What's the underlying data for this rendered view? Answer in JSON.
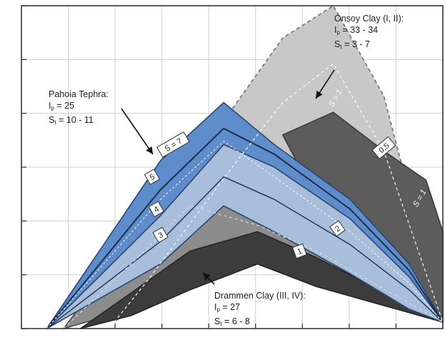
{
  "chart_data": {
    "type": "area",
    "title": "",
    "xlabel": "",
    "ylabel": "",
    "grid": true,
    "series": [
      {
        "name": "Onsoy Clay (I, II)",
        "color": "#c8c8c8",
        "edge": "#6e6e6e",
        "dashed": true,
        "upper": [
          [
            0.22,
            0.02
          ],
          [
            0.3,
            0.2
          ],
          [
            0.5,
            0.68
          ],
          [
            0.62,
            0.9
          ],
          [
            0.74,
            1.0
          ],
          [
            0.86,
            0.72
          ],
          [
            1.0,
            0.02
          ]
        ],
        "lower": [
          [
            0.22,
            0.02
          ],
          [
            0.3,
            0.1
          ],
          [
            0.5,
            0.3
          ],
          [
            0.7,
            0.4
          ],
          [
            0.85,
            0.2
          ],
          [
            1.0,
            0.02
          ]
        ]
      },
      {
        "name": "Onsoy Clay (I, II) dark",
        "color": "#5c5c5c",
        "edge": "#3a3a3a",
        "dashed": false,
        "upper": [
          [
            0.62,
            0.6
          ],
          [
            0.74,
            0.67
          ],
          [
            0.86,
            0.55
          ],
          [
            0.96,
            0.46
          ],
          [
            1.0,
            0.3
          ],
          [
            1.0,
            0.02
          ]
        ],
        "lower": [
          [
            0.62,
            0.6
          ],
          [
            0.7,
            0.4
          ],
          [
            0.85,
            0.2
          ],
          [
            1.0,
            0.02
          ]
        ]
      },
      {
        "name": "Drammen Clay (III, IV)",
        "color": "#8c8c8c",
        "edge": "#4a4a4a",
        "dashed": false,
        "upper": [
          [
            0.1,
            0.0
          ],
          [
            0.26,
            0.28
          ],
          [
            0.4,
            0.52
          ],
          [
            0.56,
            0.36
          ],
          [
            0.7,
            0.28
          ],
          [
            0.82,
            0.14
          ],
          [
            1.0,
            0.02
          ]
        ],
        "lower": [
          [
            0.1,
            0.0
          ],
          [
            0.26,
            0.06
          ],
          [
            0.4,
            0.16
          ],
          [
            0.56,
            0.26
          ],
          [
            0.7,
            0.2
          ],
          [
            1.0,
            0.02
          ]
        ]
      },
      {
        "name": "Drammen Clay (III, IV) dark",
        "color": "#3c3c3c",
        "edge": "#252525",
        "dashed": false,
        "upper": [
          [
            0.14,
            0.0
          ],
          [
            0.26,
            0.11
          ],
          [
            0.4,
            0.24
          ],
          [
            0.56,
            0.3
          ],
          [
            0.7,
            0.22
          ],
          [
            1.0,
            0.02
          ]
        ],
        "lower": [
          [
            0.14,
            0.0
          ],
          [
            0.26,
            0.04
          ],
          [
            0.4,
            0.12
          ],
          [
            0.56,
            0.2
          ],
          [
            0.7,
            0.13
          ],
          [
            1.0,
            0.02
          ]
        ]
      },
      {
        "name": "Pahoia Tephra",
        "color": "#5f8ccb",
        "edge": "#2a4670",
        "dashed": false,
        "upper": [
          [
            0.06,
            0.0
          ],
          [
            0.33,
            0.52
          ],
          [
            0.48,
            0.7
          ],
          [
            0.6,
            0.57
          ],
          [
            0.78,
            0.4
          ],
          [
            0.92,
            0.2
          ],
          [
            1.0,
            0.02
          ]
        ],
        "lower": [
          [
            0.06,
            0.0
          ],
          [
            0.33,
            0.3
          ],
          [
            0.48,
            0.5
          ],
          [
            0.6,
            0.44
          ],
          [
            0.78,
            0.23
          ],
          [
            0.92,
            0.1
          ],
          [
            1.0,
            0.02
          ]
        ]
      },
      {
        "name": "Pahoia Tephra light",
        "color": "#a9bedb",
        "edge": "#2a4670",
        "dashed": false,
        "upper": [
          [
            0.06,
            0.0
          ],
          [
            0.33,
            0.35
          ],
          [
            0.48,
            0.57
          ],
          [
            0.6,
            0.5
          ],
          [
            0.78,
            0.34
          ],
          [
            0.92,
            0.16
          ],
          [
            1.0,
            0.02
          ]
        ],
        "lower": [
          [
            0.06,
            0.0
          ],
          [
            0.33,
            0.2
          ],
          [
            0.48,
            0.38
          ],
          [
            0.6,
            0.3
          ],
          [
            0.78,
            0.17
          ],
          [
            0.92,
            0.06
          ],
          [
            1.0,
            0.02
          ]
        ]
      }
    ],
    "annotations": [
      {
        "label": "Onsoy Clay (I, II):",
        "lines": [
          "Ip = 33 - 34",
          "St = 3 - 7"
        ]
      },
      {
        "label": "Pahoia Tephra:",
        "lines": [
          "Ip = 25",
          "St = 10 - 11"
        ]
      },
      {
        "label": "Drammen Clay (III, IV):",
        "lines": [
          "Ip = 27",
          "St = 6 - 8"
        ]
      }
    ],
    "curve_labels": [
      "S = 1",
      "S = 1"
    ],
    "box_labels": [
      "S = 7",
      "5",
      "4",
      "3",
      "2",
      "1",
      "0.5"
    ]
  },
  "annotations": {
    "onsoy": {
      "title": "Onsoy Clay (I, II):",
      "ip_sym": "I",
      "ip_sub": "p",
      "ip_val": " = 33 - 34",
      "st_sym": "S",
      "st_sub": "t",
      "st_val": " = 3 - 7"
    },
    "pahoia": {
      "title": "Pahoia Tephra:",
      "ip_sym": "I",
      "ip_sub": "p",
      "ip_val": " = 25",
      "st_sym": "S",
      "st_sub": "t",
      "st_val": " = 10 - 11"
    },
    "drammen": {
      "title": "Drammen Clay (III, IV):",
      "ip_sym": "I",
      "ip_sub": "p",
      "ip_val": " = 27",
      "st_sym": "S",
      "st_sub": "t",
      "st_val": " = 6 - 8"
    }
  }
}
